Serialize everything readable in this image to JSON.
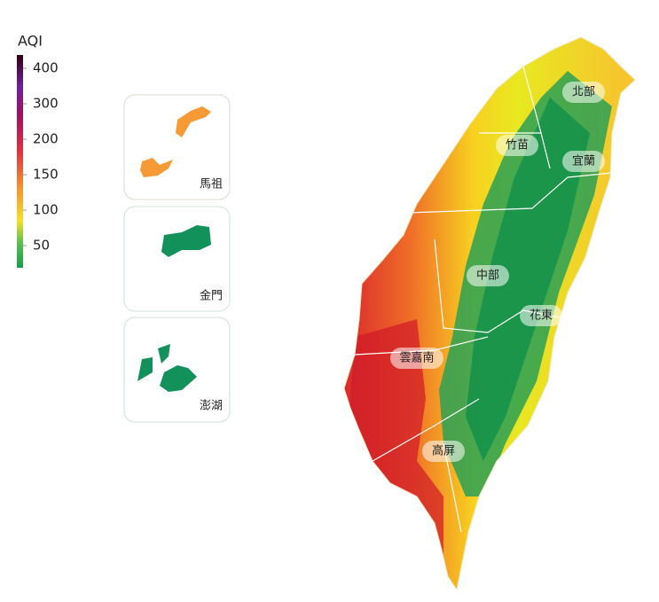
{
  "legend": {
    "title": "AQI",
    "ticks": [
      400,
      300,
      200,
      150,
      100,
      50
    ]
  },
  "islands": [
    "馬祖",
    "金門",
    "澎湖"
  ],
  "regions": [
    "北部",
    "竹苗",
    "宜蘭",
    "中部",
    "花東",
    "雲嘉南",
    "高屏"
  ]
}
